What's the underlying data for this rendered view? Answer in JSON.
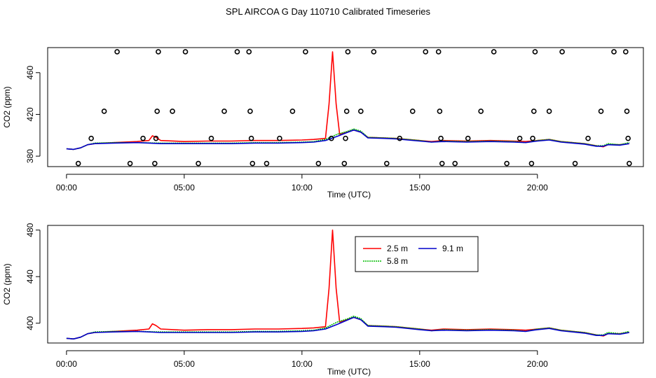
{
  "figure_title": "SPL AIRCOA G  Day 110710  Calibrated Timeseries",
  "chart_data": [
    {
      "type": "line",
      "title": "SPL AIRCOA G  Day 110710  Calibrated Timeseries",
      "xlabel": "Time (UTC)",
      "ylabel": "CO2 (ppm)",
      "xlim": [
        -0.8,
        24.5
      ],
      "ylim": [
        370,
        484
      ],
      "xticks": [
        0,
        5,
        10,
        15,
        20
      ],
      "xtick_labels": [
        "00:00",
        "05:00",
        "10:00",
        "15:00",
        "20:00"
      ],
      "yticks": [
        380,
        420,
        460
      ],
      "ytick_labels": [
        "380",
        "420",
        "460"
      ],
      "series": [
        {
          "name": "2.5 m",
          "color": "#ff0000",
          "x": [
            0,
            0.3,
            0.6,
            0.9,
            1.2,
            2,
            3,
            3.5,
            3.65,
            3.8,
            4,
            5,
            6,
            7,
            8,
            9,
            10,
            10.5,
            11,
            11.15,
            11.3,
            11.45,
            11.6,
            11.9,
            12.2,
            12.5,
            12.8,
            13.5,
            14,
            15,
            15.5,
            16,
            17,
            18,
            19,
            19.5,
            20,
            20.5,
            21,
            21.5,
            22,
            22.5,
            22.8,
            23,
            23.5,
            23.9
          ],
          "values": [
            387,
            386.5,
            388,
            391,
            392,
            393,
            394,
            395,
            399.5,
            398,
            395,
            394,
            394.5,
            394.5,
            395,
            395,
            395.5,
            396,
            397,
            430,
            480,
            430,
            401,
            403,
            405,
            403,
            398,
            397.5,
            397,
            395,
            394,
            395,
            394.5,
            395,
            394.5,
            394,
            395,
            396,
            394,
            393,
            392,
            390,
            389,
            391,
            391,
            392
          ]
        },
        {
          "name": "5.8 m",
          "color": "#00bb00",
          "x": [
            0,
            0.3,
            0.6,
            0.9,
            1.2,
            2,
            3,
            4,
            5,
            6,
            7,
            8,
            9,
            10,
            10.5,
            11,
            11.5,
            11.9,
            12.2,
            12.5,
            12.8,
            13.5,
            14,
            15,
            15.5,
            16,
            17,
            18,
            19,
            19.5,
            20,
            20.5,
            21,
            21.5,
            22,
            22.5,
            22.8,
            23,
            23.5,
            23.9
          ],
          "values": [
            387,
            386.5,
            388,
            391,
            392.5,
            393,
            393,
            392.5,
            392.5,
            392.5,
            392.5,
            393,
            393,
            393.5,
            394,
            396,
            401,
            403.5,
            406,
            404,
            398,
            397.5,
            397,
            395,
            393.5,
            394.5,
            394,
            394.5,
            394,
            393,
            395,
            396,
            394,
            393,
            392,
            390,
            390,
            392,
            391,
            393
          ]
        },
        {
          "name": "9.1 m",
          "color": "#0000cc",
          "x": [
            0,
            0.3,
            0.6,
            0.9,
            1.2,
            2,
            3,
            4,
            5,
            6,
            7,
            8,
            9,
            10,
            10.5,
            11,
            11.5,
            11.9,
            12.2,
            12.5,
            12.8,
            13.5,
            14,
            15,
            15.5,
            16,
            17,
            18,
            19,
            19.5,
            20,
            20.5,
            21,
            21.5,
            22,
            22.5,
            22.8,
            23,
            23.5,
            23.9
          ],
          "values": [
            387,
            386.5,
            388,
            391,
            392,
            392.5,
            393,
            392,
            392,
            392,
            392,
            392.5,
            392.5,
            393,
            393.5,
            395,
            399,
            402.5,
            405,
            403,
            397.5,
            397,
            396.5,
            394.5,
            393.5,
            394,
            393.5,
            394,
            393.5,
            393,
            394.5,
            395.5,
            393.5,
            392.5,
            391.5,
            389.5,
            389.5,
            391,
            390.5,
            392
          ]
        },
        {
          "name": "markers",
          "color": "#000000",
          "x": [
            0.5,
            1.05,
            1.6,
            2.15,
            2.7,
            3.25,
            3.75,
            3.8,
            3.85,
            3.9,
            4.5,
            5.05,
            5.6,
            6.15,
            6.7,
            7.25,
            7.75,
            7.8,
            7.85,
            7.9,
            8.5,
            9.05,
            9.6,
            10.15,
            10.7,
            11.25,
            11.8,
            11.85,
            11.9,
            11.95,
            12.5,
            13.05,
            13.6,
            14.15,
            14.7,
            15.25,
            15.8,
            15.85,
            15.9,
            15.95,
            16.5,
            17.05,
            17.6,
            18.15,
            18.7,
            19.25,
            19.75,
            19.8,
            19.85,
            19.9,
            20.5,
            21.05,
            21.6,
            22.15,
            22.7,
            23.25,
            23.75,
            23.8,
            23.85,
            23.9
          ],
          "values": [
            373,
            397,
            423,
            480,
            373,
            397,
            373,
            397,
            423,
            480,
            423,
            480,
            373,
            397,
            423,
            480,
            480,
            423,
            397,
            373,
            373,
            397,
            423,
            480,
            373,
            397,
            373,
            397,
            423,
            480,
            423,
            480,
            373,
            397,
            423,
            480,
            480,
            423,
            397,
            373,
            373,
            397,
            423,
            480,
            373,
            397,
            373,
            397,
            423,
            480,
            423,
            480,
            373,
            397,
            423,
            480,
            480,
            423,
            397,
            373
          ]
        }
      ]
    },
    {
      "type": "line",
      "xlabel": "Time (UTC)",
      "ylabel": "CO2 (ppm)",
      "xlim": [
        -0.8,
        24.5
      ],
      "ylim": [
        383,
        484
      ],
      "xticks": [
        0,
        5,
        10,
        15,
        20
      ],
      "xtick_labels": [
        "00:00",
        "05:00",
        "10:00",
        "15:00",
        "20:00"
      ],
      "yticks": [
        400,
        440,
        480
      ],
      "ytick_labels": [
        "400",
        "440",
        "480"
      ],
      "legend": {
        "position": "top-center",
        "entries": [
          "2.5 m",
          "9.1 m",
          "5.8 m"
        ]
      },
      "series": [
        {
          "name": "2.5 m",
          "color": "#ff0000",
          "x": [
            0,
            0.3,
            0.6,
            0.9,
            1.2,
            2,
            3,
            3.5,
            3.65,
            3.8,
            4,
            5,
            6,
            7,
            8,
            9,
            10,
            10.5,
            11,
            11.15,
            11.3,
            11.45,
            11.6,
            11.9,
            12.2,
            12.5,
            12.8,
            13.5,
            14,
            15,
            15.5,
            16,
            17,
            18,
            19,
            19.5,
            20,
            20.5,
            21,
            21.5,
            22,
            22.5,
            22.8,
            23,
            23.5,
            23.9
          ],
          "values": [
            387,
            386.5,
            388,
            391,
            392,
            393,
            394,
            395,
            399.5,
            398,
            395,
            394,
            394.5,
            394.5,
            395,
            395,
            395.5,
            396,
            397,
            430,
            480,
            430,
            401,
            403,
            405,
            403,
            398,
            397.5,
            397,
            395,
            394,
            395,
            394.5,
            395,
            394.5,
            394,
            395,
            396,
            394,
            393,
            392,
            390,
            389,
            391,
            391,
            392
          ]
        },
        {
          "name": "5.8 m",
          "color": "#00bb00",
          "x": [
            0,
            0.3,
            0.6,
            0.9,
            1.2,
            2,
            3,
            4,
            5,
            6,
            7,
            8,
            9,
            10,
            10.5,
            11,
            11.5,
            11.9,
            12.2,
            12.5,
            12.8,
            13.5,
            14,
            15,
            15.5,
            16,
            17,
            18,
            19,
            19.5,
            20,
            20.5,
            21,
            21.5,
            22,
            22.5,
            22.8,
            23,
            23.5,
            23.9
          ],
          "values": [
            387,
            386.5,
            388,
            391,
            392.5,
            393,
            393,
            392.5,
            392.5,
            392.5,
            392.5,
            393,
            393,
            393.5,
            394,
            396,
            401,
            403.5,
            406,
            404,
            398,
            397.5,
            397,
            395,
            393.5,
            394.5,
            394,
            394.5,
            394,
            393,
            395,
            396,
            394,
            393,
            392,
            390,
            390,
            392,
            391,
            393
          ]
        },
        {
          "name": "9.1 m",
          "color": "#0000cc",
          "x": [
            0,
            0.3,
            0.6,
            0.9,
            1.2,
            2,
            3,
            4,
            5,
            6,
            7,
            8,
            9,
            10,
            10.5,
            11,
            11.5,
            11.9,
            12.2,
            12.5,
            12.8,
            13.5,
            14,
            15,
            15.5,
            16,
            17,
            18,
            19,
            19.5,
            20,
            20.5,
            21,
            21.5,
            22,
            22.5,
            22.8,
            23,
            23.5,
            23.9
          ],
          "values": [
            387,
            386.5,
            388,
            391,
            392,
            392.5,
            393,
            392,
            392,
            392,
            392,
            392.5,
            392.5,
            393,
            393.5,
            395,
            399,
            402.5,
            405,
            403,
            397.5,
            397,
            396.5,
            394.5,
            393.5,
            394,
            393.5,
            394,
            393.5,
            393,
            394.5,
            395.5,
            393.5,
            392.5,
            391.5,
            389.5,
            389.5,
            391,
            390.5,
            392
          ]
        }
      ]
    }
  ]
}
